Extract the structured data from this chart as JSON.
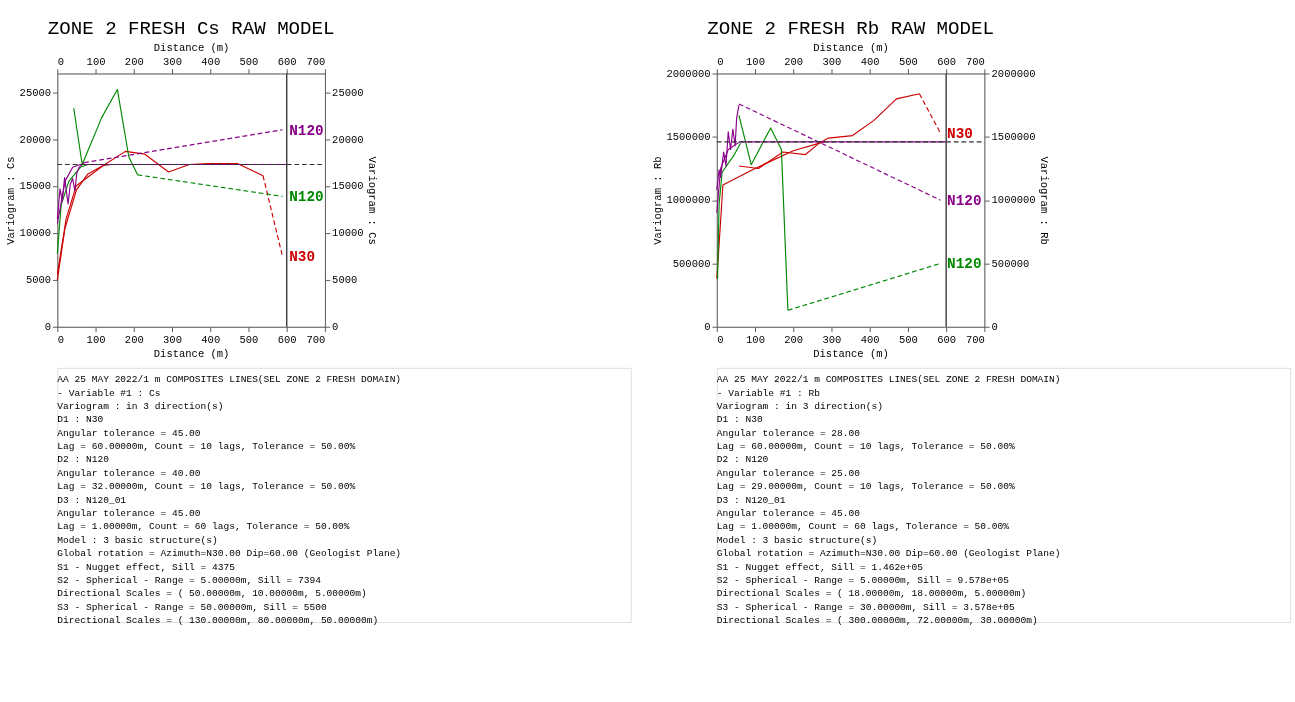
{
  "chart_data": [
    {
      "type": "line",
      "title": "ZONE 2 FRESH Cs RAW MODEL",
      "xlabel": "Distance (m)",
      "x2label": "Distance (m)",
      "ylabel": "Variogram : Cs",
      "y2label": "Variogram : Cs",
      "xlim": [
        0,
        700
      ],
      "xticks": [
        0,
        100,
        200,
        300,
        400,
        500,
        600,
        700
      ],
      "x2lim": [
        0,
        700
      ],
      "x2ticks": [
        0,
        100,
        200,
        300,
        400,
        500,
        600,
        700
      ],
      "ylim": [
        0,
        27000
      ],
      "yticks": [
        0,
        5000,
        10000,
        15000,
        20000,
        25000
      ],
      "y2lim": [
        0,
        27000
      ],
      "y2ticks": [
        0,
        5000,
        10000,
        15000,
        20000,
        25000
      ],
      "grid": false,
      "legend": false,
      "series": [
        {
          "color": "#cc0000",
          "line_style": "solid",
          "x": [
            0,
            23,
            49,
            120,
            178,
            229,
            291,
            345,
            395,
            471,
            538
          ],
          "values": [
            5600,
            11500,
            15000,
            17200,
            18700,
            18400,
            16500,
            17300,
            17400,
            17400,
            16100
          ]
        },
        {
          "name": "N30",
          "color": "#cc0000",
          "line_style": "dashed",
          "x": [
            538,
            589
          ],
          "values": [
            16100,
            7500
          ]
        },
        {
          "color": "#cc0000",
          "line_style": "solid",
          "x": [
            0,
            20,
            50,
            80,
            120,
            140
          ],
          "values": [
            5000,
            10500,
            14600,
            16300,
            17200,
            17300
          ]
        },
        {
          "color": "#008800",
          "line_style": "solid",
          "x": [
            43,
            65,
            116,
            157,
            187,
            210
          ],
          "values": [
            23300,
            17300,
            22300,
            25300,
            18100,
            16200
          ]
        },
        {
          "name": "N120",
          "color": "#008800",
          "line_style": "dashed",
          "x": [
            210,
            589
          ],
          "values": [
            16200,
            13900
          ]
        },
        {
          "color": "#008800",
          "line_style": "solid",
          "x": [
            0,
            10,
            30,
            60,
            80
          ],
          "values": [
            7800,
            13000,
            15500,
            17000,
            17300
          ]
        },
        {
          "color": "#880088",
          "line_style": "solid",
          "x": [
            0,
            7,
            13,
            19,
            28,
            34,
            40,
            46,
            51,
            57,
            70
          ],
          "values": [
            11500,
            14700,
            13400,
            15900,
            13100,
            15200,
            15800,
            14500,
            16400,
            17000,
            17500
          ]
        },
        {
          "name": "N120",
          "color": "#880088",
          "line_style": "dashed",
          "x": [
            70,
            589
          ],
          "values": [
            17500,
            21000
          ]
        },
        {
          "color": "#880088",
          "line_style": "solid",
          "x": [
            0,
            20,
            40,
            60,
            600
          ],
          "values": [
            11000,
            15500,
            17000,
            17300,
            17300
          ]
        }
      ],
      "ref_lines": [
        {
          "axis": "x2",
          "value": 600,
          "color": "#404040",
          "line_style": "solid"
        },
        {
          "axis": "y2",
          "value": 17300,
          "color": "#303030",
          "line_style": "dashed"
        }
      ],
      "annotations": [
        "AA 25 MAY 2022/1 m COMPOSITES LINES(SEL ZONE 2 FRESH DOMAIN)",
        "- Variable #1 : Cs",
        "Variogram : in 3 direction(s)",
        "D1   : N30",
        "       Angular tolerance =  45.00",
        "       Lag =  60.00000m, Count = 10 lags, Tolerance = 50.00%",
        "D2   : N120",
        "       Angular tolerance =  40.00",
        "       Lag =  32.00000m, Count = 10 lags, Tolerance = 50.00%",
        "D3   : N120_01",
        "       Angular tolerance =  45.00",
        "       Lag =  1.00000m, Count = 60 lags, Tolerance = 50.00%",
        "Model : 3 basic structure(s)",
        "Global rotation = Azimuth=N30.00 Dip=60.00 (Geologist Plane)",
        "S1  - Nugget effect, Sill =       4375",
        "S2  - Spherical - Range = 5.00000m, Sill =       7394",
        "       Directional Scales = (          50.00000m,          10.00000m,           5.00000m)",
        "S3  - Spherical - Range = 50.00000m, Sill =       5500",
        "       Directional Scales = (         130.00000m,          80.00000m,          50.00000m)"
      ]
    },
    {
      "type": "line",
      "title": "ZONE 2 FRESH Rb RAW MODEL",
      "xlabel": "Distance (m)",
      "x2label": "Distance (m)",
      "ylabel": "Variogram : Rb",
      "y2label": "Variogram : Rb",
      "xlim": [
        0,
        700
      ],
      "xticks": [
        0,
        100,
        200,
        300,
        400,
        500,
        600,
        700
      ],
      "x2lim": [
        0,
        700
      ],
      "x2ticks": [
        0,
        100,
        200,
        300,
        400,
        500,
        600,
        700
      ],
      "ylim": [
        0,
        2000000
      ],
      "yticks": [
        0,
        500000,
        1000000,
        1500000,
        2000000
      ],
      "y2lim": [
        0,
        2000000
      ],
      "y2ticks": [
        0,
        500000,
        1000000,
        1500000,
        2000000
      ],
      "grid": false,
      "legend": false,
      "series": [
        {
          "color": "#cc0000",
          "line_style": "solid",
          "x": [
            58,
            109,
            173,
            232,
            268,
            292,
            355,
            411,
            470,
            530
          ],
          "values": [
            1270000,
            1250000,
            1380000,
            1360000,
            1450000,
            1490000,
            1510000,
            1630000,
            1800000,
            1840000
          ]
        },
        {
          "name": "N30",
          "color": "#cc0000",
          "line_style": "dashed",
          "x": [
            530,
            585
          ],
          "values": [
            1840000,
            1530000
          ]
        },
        {
          "color": "#cc0000",
          "line_style": "solid",
          "x": [
            0,
            5,
            16,
            100,
            200,
            280
          ],
          "values": [
            380000,
            600000,
            1120000,
            1250000,
            1390000,
            1460000
          ]
        },
        {
          "color": "#008800",
          "line_style": "solid",
          "x": [
            58,
            90,
            141,
            169,
            186
          ],
          "values": [
            1670000,
            1280000,
            1570000,
            1400000,
            130000
          ]
        },
        {
          "name": "N120",
          "color": "#008800",
          "line_style": "dashed",
          "x": [
            186,
            585
          ],
          "values": [
            130000,
            500000
          ]
        },
        {
          "color": "#008800",
          "line_style": "solid",
          "x": [
            2,
            6,
            14,
            46,
            62
          ],
          "values": [
            380000,
            970000,
            1220000,
            1360000,
            1450000
          ]
        },
        {
          "color": "#880088",
          "line_style": "solid",
          "x": [
            0,
            6,
            10,
            18,
            24,
            30,
            36,
            42,
            48,
            52,
            58
          ],
          "values": [
            1080000,
            1240000,
            1180000,
            1380000,
            1270000,
            1540000,
            1400000,
            1560000,
            1430000,
            1650000,
            1750000
          ]
        },
        {
          "name": "N120",
          "color": "#880088",
          "line_style": "dashed",
          "x": [
            58,
            585
          ],
          "values": [
            1760000,
            1000000
          ]
        },
        {
          "color": "#880088",
          "line_style": "solid",
          "x": [
            0,
            10,
            30,
            60,
            600
          ],
          "values": [
            900000,
            1250000,
            1400000,
            1460000,
            1460000
          ]
        }
      ],
      "ref_lines": [
        {
          "axis": "x2",
          "value": 600,
          "color": "#404040",
          "line_style": "solid"
        },
        {
          "axis": "y2",
          "value": 1460000,
          "color": "#303030",
          "line_style": "dashed"
        }
      ],
      "annotations": [
        "AA 25 MAY 2022/1 m COMPOSITES LINES(SEL ZONE 2 FRESH DOMAIN)",
        "- Variable #1 : Rb",
        "Variogram : in 3 direction(s)",
        "D1   : N30",
        "       Angular tolerance =  28.00",
        "       Lag =  60.00000m, Count = 10 lags, Tolerance = 50.00%",
        "D2   : N120",
        "       Angular tolerance =  25.00",
        "       Lag =  29.00000m, Count = 10 lags, Tolerance = 50.00%",
        "D3   : N120_01",
        "       Angular tolerance =  45.00",
        "       Lag =  1.00000m, Count = 60 lags, Tolerance = 50.00%",
        "Model : 3 basic structure(s)",
        "Global rotation = Azimuth=N30.00 Dip=60.00 (Geologist Plane)",
        "S1  - Nugget effect, Sill = 1.462e+05",
        "S2  - Spherical - Range = 5.00000m, Sill = 9.578e+05",
        "       Directional Scales = (          18.00000m,          18.00000m,           5.00000m)",
        "S3  - Spherical - Range = 30.00000m, Sill = 3.578e+05",
        "       Directional Scales = (         300.00000m,          72.00000m,          30.00000m)"
      ]
    }
  ]
}
